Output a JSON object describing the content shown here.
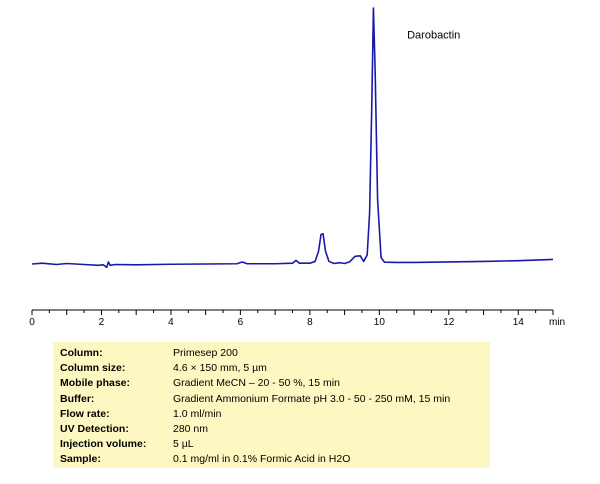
{
  "chart_data": {
    "type": "line",
    "title": "",
    "xlabel": "",
    "ylabel": "",
    "x_unit": "min",
    "xlim": [
      0,
      15
    ],
    "x_ticks": [
      0,
      2,
      4,
      6,
      8,
      10,
      12,
      14
    ],
    "ylim": [
      -15,
      100
    ],
    "grid": false,
    "legend": "none",
    "line_color": "#1a1aa8",
    "series": [
      {
        "points": [
          [
            0,
            0.0
          ],
          [
            0.3,
            0.3
          ],
          [
            0.7,
            -0.2
          ],
          [
            1.0,
            0.2
          ],
          [
            1.5,
            -0.2
          ],
          [
            1.9,
            -0.5
          ],
          [
            2.05,
            -0.3
          ],
          [
            2.15,
            -1.3
          ],
          [
            2.2,
            0.8
          ],
          [
            2.25,
            -0.5
          ],
          [
            2.4,
            -0.2
          ],
          [
            3.0,
            -0.3
          ],
          [
            4.0,
            -0.1
          ],
          [
            5.0,
            0.0
          ],
          [
            5.9,
            0.1
          ],
          [
            6.05,
            0.8
          ],
          [
            6.2,
            0.1
          ],
          [
            7.0,
            0.1
          ],
          [
            7.5,
            0.3
          ],
          [
            7.6,
            1.4
          ],
          [
            7.7,
            0.3
          ],
          [
            8.0,
            0.3
          ],
          [
            8.15,
            1.0
          ],
          [
            8.25,
            5.0
          ],
          [
            8.32,
            11.5
          ],
          [
            8.38,
            11.8
          ],
          [
            8.45,
            5.0
          ],
          [
            8.55,
            1.0
          ],
          [
            8.7,
            0.2
          ],
          [
            8.85,
            0.5
          ],
          [
            9.0,
            0.2
          ],
          [
            9.15,
            0.9
          ],
          [
            9.3,
            3.0
          ],
          [
            9.45,
            3.2
          ],
          [
            9.55,
            1.0
          ],
          [
            9.65,
            3.5
          ],
          [
            9.72,
            20.0
          ],
          [
            9.78,
            60.0
          ],
          [
            9.83,
            100.0
          ],
          [
            9.88,
            75.0
          ],
          [
            9.95,
            25.0
          ],
          [
            10.05,
            2.5
          ],
          [
            10.15,
            0.7
          ],
          [
            10.5,
            0.6
          ],
          [
            11.0,
            0.6
          ],
          [
            12.0,
            0.8
          ],
          [
            13.0,
            1.0
          ],
          [
            14.0,
            1.3
          ],
          [
            15.0,
            1.8
          ]
        ]
      }
    ],
    "annotations": [
      {
        "text": "Darobactin",
        "x": 10.8,
        "y": 88
      }
    ]
  },
  "info": {
    "rows": [
      {
        "label": "Column:",
        "value": "Primesep 200"
      },
      {
        "label": "Column size:",
        "value": "4.6 × 150 mm, 5 µm"
      },
      {
        "label": "Mobile phase:",
        "value": "Gradient  MeCN – 20 - 50 %,  15 min"
      },
      {
        "label": "Buffer:",
        "value": "Gradient Ammonium  Formate pH 3.0  - 50 - 250 mM,  15 min"
      },
      {
        "label": "Flow rate:",
        "value": "1.0  ml/min"
      },
      {
        "label": "UV Detection:",
        "value": "280 nm"
      },
      {
        "label": "Injection volume:",
        "value": "5 µL"
      },
      {
        "label": "Sample:",
        "value": "0.1 mg/ml in 0.1% Formic Acid in H2O"
      }
    ]
  }
}
